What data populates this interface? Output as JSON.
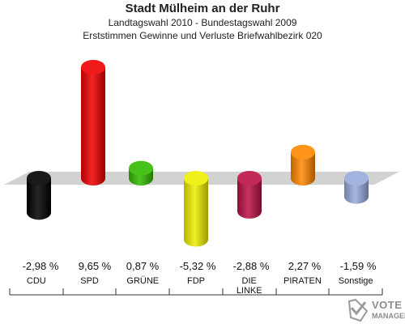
{
  "header": {
    "title": "Stadt Mülheim an der Ruhr",
    "subtitle1": "Landtagswahl 2010 - Bundestagswahl 2009",
    "subtitle2": "Erststimmen Gewinne und Verluste Briefwahlbezirk 020"
  },
  "logo": {
    "line1": "VOTE",
    "line2": "MANAGER",
    "icon": "vote-check-icon"
  },
  "chart_data": {
    "type": "bar",
    "title": "Stadt Mülheim an der Ruhr",
    "categories": [
      "CDU",
      "SPD",
      "GRÜNE",
      "FDP",
      "DIE LINKE",
      "PIRATEN",
      "Sonstige"
    ],
    "values": [
      -2.98,
      9.65,
      0.87,
      -5.32,
      -2.88,
      2.27,
      -1.59
    ],
    "value_labels": [
      "-2,98 %",
      "9,65 %",
      "0,87 %",
      "-5,32 %",
      "-2,88 %",
      "2,27 %",
      "-1,59 %"
    ],
    "colors": [
      "#000000",
      "#ee0000",
      "#33bb00",
      "#eeee00",
      "#bb1144",
      "#ff8800",
      "#99aadd"
    ],
    "grid": false,
    "legend": "none"
  }
}
